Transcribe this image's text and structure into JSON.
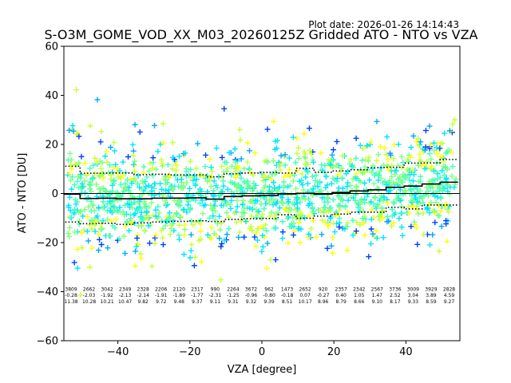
{
  "plot_date": "Plot date: 2026-01-26 14:14:43",
  "chart_data": {
    "type": "scatter",
    "title": "S-O3M_GOME_VOD_XX_M03_20260125Z Gridded ATO - NTO vs VZA",
    "xlabel": "VZA [degree]",
    "ylabel": "ATO - NTO [DU]",
    "xlim": [
      -55,
      55
    ],
    "ylim": [
      -60,
      60
    ],
    "xticks": [
      -40,
      -20,
      0,
      20,
      40
    ],
    "yticks": [
      -60,
      -40,
      -20,
      0,
      20,
      40,
      60
    ],
    "zero_line": true,
    "marker": "plus",
    "point_colors": [
      "#7fff7f",
      "#40ffbf",
      "#00e5ff",
      "#ffff00",
      "#c8ff37",
      "#00a8ff",
      "#0040ff"
    ],
    "bins": {
      "centers": [
        -53,
        -48,
        -43,
        -38,
        -33,
        -28,
        -23,
        -18,
        -13,
        -8,
        -3,
        2,
        7,
        12,
        17,
        22,
        27,
        32,
        37,
        42,
        47,
        52
      ],
      "counts": [
        "3809",
        "2662",
        "3042",
        "2349",
        "2328",
        "2206",
        "2120",
        "2317",
        "990",
        "2264",
        "3672",
        "962",
        "1473",
        "2652",
        "920",
        "2357",
        "2342",
        "2567",
        "3736",
        "3009",
        "3929",
        "2828"
      ],
      "means": [
        "-0.28",
        "-2.03",
        "-1.92",
        "-2.13",
        "-2.14",
        "-1.91",
        "-1.89",
        "-1.77",
        "-2.31",
        "-1.25",
        "-0.96",
        "-0.80",
        "-0.18",
        "0.07",
        "-0.27",
        "0.40",
        "1.05",
        "1.47",
        "2.52",
        "3.04",
        "3.89",
        "4.59"
      ],
      "stds": [
        "11.38",
        "10.28",
        "10.21",
        "10.47",
        "9.82",
        "9.72",
        "9.48",
        "9.37",
        "9.11",
        "9.31",
        "9.32",
        "9.39",
        "8.51",
        "10.17",
        "8.96",
        "8.79",
        "8.66",
        "9.10",
        "8.17",
        "9.33",
        "8.59",
        "9.27"
      ]
    }
  }
}
